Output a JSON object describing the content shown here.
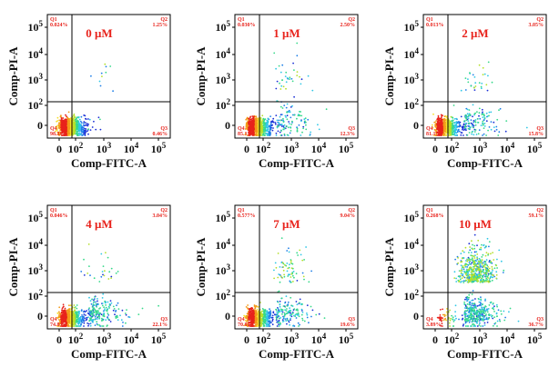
{
  "figure": {
    "x_axis_label": "Comp-FITC-A",
    "y_axis_label": "Comp-PI-A",
    "quadrant_color": "#e8231c",
    "label_color": "#e8231c",
    "point_colors": [
      "#1a2fd6",
      "#1e7fe8",
      "#2fc7e6",
      "#36d98a",
      "#b5e02c",
      "#f6e12a",
      "#f39a1a",
      "#e8231c"
    ],
    "quadrant_names": [
      "Q1",
      "Q2",
      "Q3",
      "Q4"
    ],
    "x_tick_labels": [
      "0",
      "10^2",
      "10^3",
      "10^4",
      "10^5"
    ],
    "y_tick_labels": [
      "0",
      "10^2",
      "10^3",
      "10^4",
      "10^5"
    ]
  },
  "chart_data": [
    {
      "type": "scatter",
      "title": "0 μM",
      "xlabel": "Comp-FITC-A",
      "ylabel": "Comp-PI-A",
      "quadrants": {
        "Q1": "0.024%",
        "Q2": "1.25%",
        "Q3": "0.46%",
        "Q4": "98.3%"
      }
    },
    {
      "type": "scatter",
      "title": "1 μM",
      "xlabel": "Comp-FITC-A",
      "ylabel": "Comp-PI-A",
      "quadrants": {
        "Q1": "0.030%",
        "Q2": "2.50%",
        "Q3": "12.3%",
        "Q4": "85.1%"
      }
    },
    {
      "type": "scatter",
      "title": "2 μM",
      "xlabel": "Comp-FITC-A",
      "ylabel": "Comp-PI-A",
      "quadrants": {
        "Q1": "0.013%",
        "Q2": "3.05%",
        "Q3": "15.8%",
        "Q4": "81.1%"
      }
    },
    {
      "type": "scatter",
      "title": "4 μM",
      "xlabel": "Comp-FITC-A",
      "ylabel": "Comp-PI-A",
      "quadrants": {
        "Q1": "0.046%",
        "Q2": "3.04%",
        "Q3": "22.1%",
        "Q4": "74.8%"
      }
    },
    {
      "type": "scatter",
      "title": "7 μM",
      "xlabel": "Comp-FITC-A",
      "ylabel": "Comp-PI-A",
      "quadrants": {
        "Q1": "0.577%",
        "Q2": "9.04%",
        "Q3": "19.6%",
        "Q4": "70.8%"
      }
    },
    {
      "type": "scatter",
      "title": "10 μM",
      "xlabel": "Comp-FITC-A",
      "ylabel": "Comp-PI-A",
      "quadrants": {
        "Q1": "0.268%",
        "Q2": "59.1%",
        "Q3": "36.7%",
        "Q4": "3.89%"
      }
    }
  ]
}
